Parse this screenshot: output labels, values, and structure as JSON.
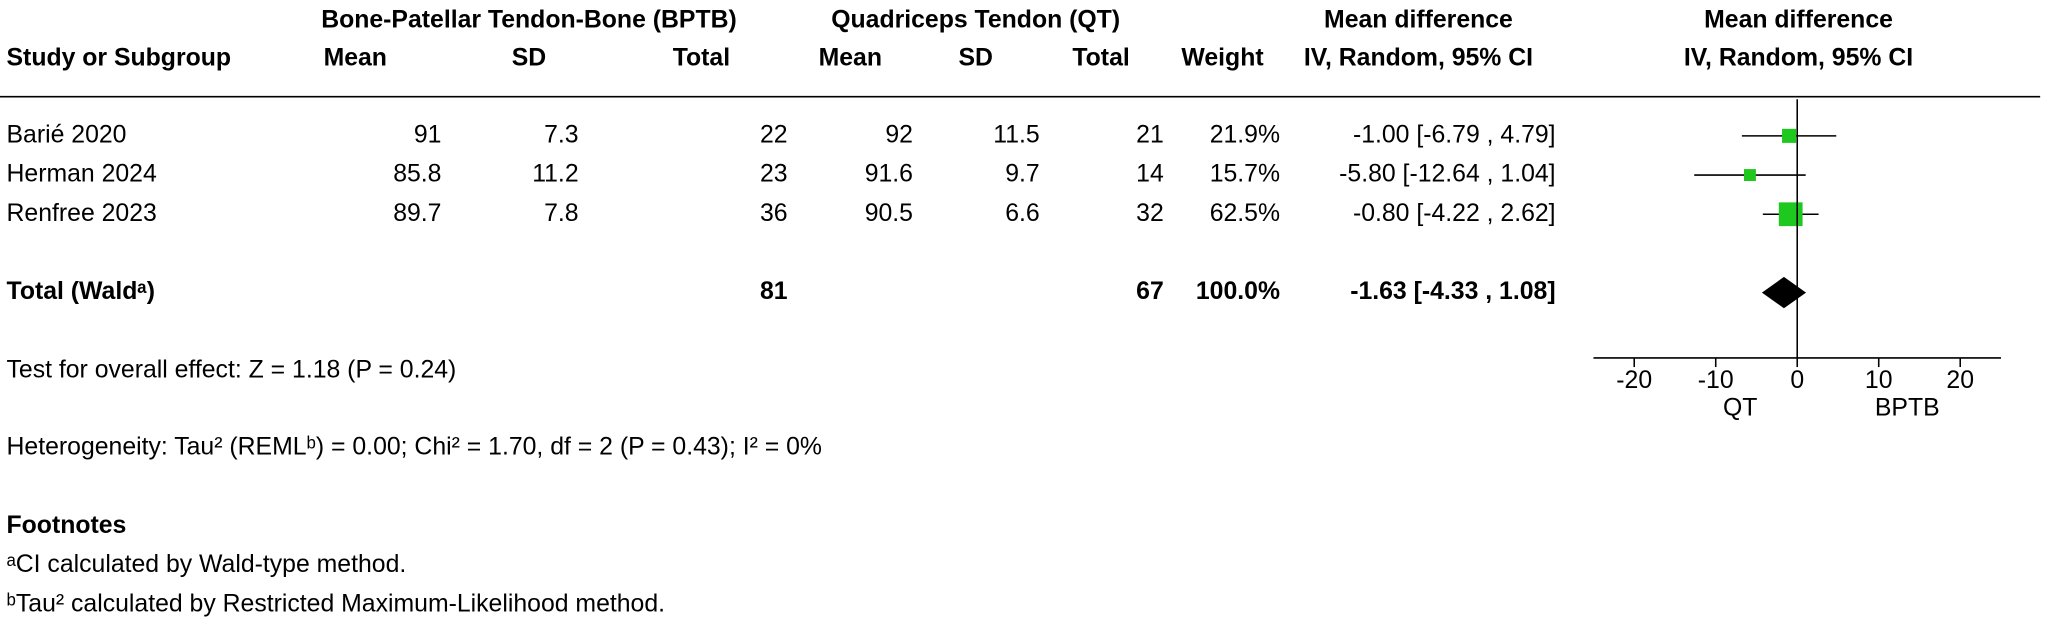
{
  "chart_data": {
    "type": "forest",
    "group_headers": [
      "Bone-Patellar Tendon-Bone (BPTB)",
      "Quadriceps Tendon (QT)",
      "Mean difference",
      "Mean difference"
    ],
    "columns": [
      "Study or Subgroup",
      "Mean",
      "SD",
      "Total",
      "Mean",
      "SD",
      "Total",
      "Weight",
      "IV, Random, 95% CI",
      "IV, Random, 95% CI"
    ],
    "studies": [
      {
        "name": "Barié 2020",
        "bptb_mean": 91,
        "bptb_sd": 7.3,
        "bptb_total": 22,
        "qt_mean": 92,
        "qt_sd": 11.5,
        "qt_total": 21,
        "weight": 21.9,
        "weight_label": "21.9%",
        "md": -1.0,
        "ci_low": -6.79,
        "ci_high": 4.79,
        "ci_label": "-1.00 [-6.79 , 4.79]"
      },
      {
        "name": "Herman 2024",
        "bptb_mean": 85.8,
        "bptb_sd": 11.2,
        "bptb_total": 23,
        "qt_mean": 91.6,
        "qt_sd": 9.7,
        "qt_total": 14,
        "weight": 15.7,
        "weight_label": "15.7%",
        "md": -5.8,
        "ci_low": -12.64,
        "ci_high": 1.04,
        "ci_label": "-5.80 [-12.64 , 1.04]"
      },
      {
        "name": "Renfree 2023",
        "bptb_mean": 89.7,
        "bptb_sd": 7.8,
        "bptb_total": 36,
        "qt_mean": 90.5,
        "qt_sd": 6.6,
        "qt_total": 32,
        "weight": 62.5,
        "weight_label": "62.5%",
        "md": -0.8,
        "ci_low": -4.22,
        "ci_high": 2.62,
        "ci_label": "-0.80 [-4.22 , 2.62]"
      }
    ],
    "total": {
      "name": "Total (Waldᵃ)",
      "bptb_total": 81,
      "qt_total": 67,
      "weight": 100.0,
      "weight_label": "100.0%",
      "md": -1.63,
      "ci_low": -4.33,
      "ci_high": 1.08,
      "ci_label": "-1.63 [-4.33 , 1.08]"
    },
    "overall_effect": "Test for overall effect: Z = 1.18 (P = 0.24)",
    "heterogeneity": "Heterogeneity: Tau² (REMLᵇ) = 0.00; Chi² = 1.70, df = 2 (P = 0.43); I² = 0%",
    "footnotes_title": "Footnotes",
    "footnotes": [
      "ᵃCI calculated by Wald-type method.",
      "ᵇTau² calculated by Restricted Maximum-Likelihood method."
    ],
    "xlim": [
      -25,
      25
    ],
    "xticks": [
      -20,
      -10,
      0,
      10,
      20
    ],
    "x_left_label": "QT",
    "x_right_label": "BPTB",
    "study_color": "#1ec81e",
    "total_color": "#000000"
  }
}
